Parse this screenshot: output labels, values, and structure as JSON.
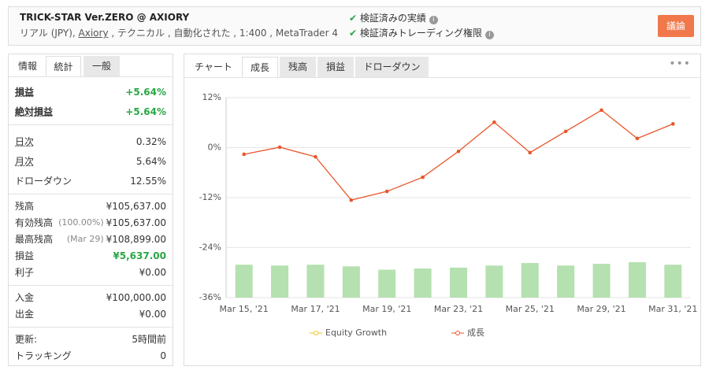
{
  "header": {
    "title": "TRICK-STAR Ver.ZERO @ AXIORY",
    "subtitle_parts": [
      "リアル (JPY), ",
      "Axiory",
      " , テクニカル , 自動化された , 1:400 , MetaTrader 4"
    ],
    "verified": [
      "検証済みの実績",
      "検証済みトレーディング権限"
    ],
    "button": "議論"
  },
  "left_tabs": [
    "情報",
    "統計",
    "一般"
  ],
  "stats": [
    [
      {
        "label": "損益",
        "value": "+5.64%",
        "color": "#28a745"
      },
      {
        "label": "絶対損益",
        "value": "+5.64%",
        "color": "#28a745"
      }
    ],
    [
      {
        "label": "日次",
        "value": "0.32%"
      },
      {
        "label": "月次",
        "value": "5.64%"
      },
      {
        "label": "ドローダウン",
        "value": "12.55%"
      }
    ],
    [
      {
        "label": "残高",
        "value": "¥105,637.00"
      },
      {
        "label": "有効残高",
        "note": "(100.00%)",
        "value": "¥105,637.00"
      },
      {
        "label": "最高残高",
        "note": "(Mar 29)",
        "value": "¥108,899.00"
      },
      {
        "label": "損益",
        "value": "¥5,637.00",
        "color": "#28a745"
      },
      {
        "label": "利子",
        "value": "¥0.00"
      }
    ],
    [
      {
        "label": "入金",
        "value": "¥100,000.00"
      },
      {
        "label": "出金",
        "value": "¥0.00"
      }
    ],
    [
      {
        "label": "更新:",
        "value": "5時間前"
      },
      {
        "label": "トラッキング",
        "value": "0"
      }
    ]
  ],
  "chart_tabs": [
    "チャート",
    "成長",
    "残高",
    "損益",
    "ドローダウン"
  ],
  "chart_data": {
    "type": "line",
    "categories": [
      "Mar 15, '21",
      null,
      "Mar 17, '21",
      null,
      "Mar 19, '21",
      null,
      "Mar 23, '21",
      null,
      "Mar 25, '21",
      null,
      "Mar 29, '21",
      null,
      "Mar 31, '21"
    ],
    "ylim": [
      -36,
      12
    ],
    "yticks": [
      {
        "value": 12,
        "label": "12%"
      },
      {
        "value": 0,
        "label": "0%"
      },
      {
        "value": -12,
        "label": "-12%"
      },
      {
        "value": -24,
        "label": "-24%"
      },
      {
        "value": -36,
        "label": "-36%"
      }
    ],
    "grid": true,
    "series": [
      {
        "name": "Equity Growth",
        "color": "#f0c419",
        "bar_color": "#b5e0b0",
        "values": [
          -28.1,
          -28.3,
          -28.1,
          -28.5,
          -29.3,
          -29.0,
          -28.8,
          -28.3,
          -27.7,
          -28.3,
          -27.9,
          -27.5,
          -28.1
        ]
      },
      {
        "name": "成長",
        "color": "#e8562a",
        "values": [
          -1.6,
          0.1,
          -2.2,
          -12.6,
          -10.5,
          -7.1,
          -0.9,
          6.1,
          -1.2,
          3.9,
          9.0,
          2.2,
          5.7
        ]
      }
    ]
  }
}
